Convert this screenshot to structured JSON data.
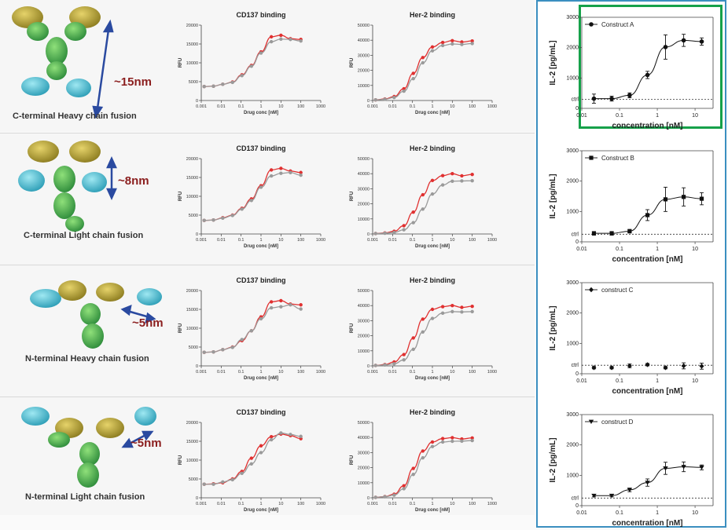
{
  "rows": [
    {
      "label": "C-terminal Heavy chain fusion",
      "dimension": "~15nm"
    },
    {
      "label": "C-terminal Light chain fusion",
      "dimension": "~8nm"
    },
    {
      "label": "N-terminal Heavy chain fusion",
      "dimension": "~5nm"
    },
    {
      "label": "N-terminal Light chain fusion",
      "dimension": "~5nm"
    }
  ],
  "caption": "",
  "colors": {
    "red_series": "#e03030",
    "grey_series": "#9a9a9a",
    "panel_border": "#3b8fc0",
    "highlight_border": "#16a14a",
    "dimension_text": "#8b1e1e",
    "arrow": "#2a4aa0"
  },
  "chart_data": [
    {
      "type": "line",
      "title": "CD137 binding",
      "xlabel": "Drug conc [nM]",
      "ylabel": "RFU",
      "xscale": "log",
      "xlim": [
        0.001,
        1000
      ],
      "ylim": [
        0,
        20000
      ],
      "xticks": [
        "0.001",
        "0.01",
        "0.1",
        "1",
        "10",
        "100",
        "1000"
      ],
      "yticks": [
        "0",
        "5000",
        "10000",
        "15000",
        "20000"
      ],
      "x": [
        0.0014,
        0.0041,
        0.012,
        0.037,
        0.11,
        0.33,
        1,
        3.3,
        10,
        30,
        100
      ],
      "series": [
        {
          "color": "#e03030",
          "values": [
            3700,
            3800,
            4300,
            4900,
            6800,
            9300,
            12900,
            16900,
            17300,
            16400,
            16200
          ]
        },
        {
          "color": "#9a9a9a",
          "values": [
            3700,
            3800,
            4300,
            4800,
            6600,
            9100,
            12600,
            15600,
            16300,
            16200,
            15800
          ]
        }
      ]
    },
    {
      "type": "line",
      "title": "Her-2 binding",
      "xlabel": "Drug conc [nM]",
      "ylabel": "RFU",
      "xscale": "log",
      "xlim": [
        0.001,
        1000
      ],
      "ylim": [
        0,
        50000
      ],
      "xticks": [
        "0.001",
        "0.01",
        "0.1",
        "1",
        "10",
        "100",
        "1000"
      ],
      "yticks": [
        "0",
        "10000",
        "20000",
        "30000",
        "40000",
        "50000"
      ],
      "x": [
        0.0014,
        0.0041,
        0.012,
        0.037,
        0.11,
        0.33,
        1,
        3.3,
        10,
        30,
        100
      ],
      "series": [
        {
          "color": "#e03030",
          "values": [
            400,
            1000,
            2600,
            7800,
            18000,
            28500,
            35500,
            38500,
            39700,
            38800,
            39500
          ]
        },
        {
          "color": "#9a9a9a",
          "values": [
            400,
            800,
            2000,
            6200,
            14500,
            25000,
            33000,
            36500,
            37500,
            37200,
            37800
          ]
        }
      ]
    },
    {
      "type": "line",
      "title": "",
      "xlabel": "concentration [nM]",
      "ylabel": "IL-2 [pg/mL]",
      "xscale": "log",
      "xlim": [
        0.01,
        30
      ],
      "ylim": [
        0,
        3000
      ],
      "xticks": [
        "0.01",
        "0.1",
        "1",
        "10"
      ],
      "yticks": [
        "0",
        "1000",
        "2000",
        "3000"
      ],
      "ctrl_label": "ctrl",
      "ctrl_value": 300,
      "legend": "Construct A",
      "marker": "circle",
      "x": [
        0.021,
        0.062,
        0.185,
        0.55,
        1.65,
        5,
        15
      ],
      "series": [
        {
          "name": "Construct A",
          "color": "#111111",
          "values": [
            320,
            320,
            430,
            1100,
            2020,
            2240,
            2200
          ],
          "errors": [
            150,
            80,
            80,
            120,
            400,
            200,
            120
          ]
        }
      ]
    },
    {
      "type": "line",
      "title": "CD137 binding",
      "xlabel": "Drug conc [nM]",
      "ylabel": "RFU",
      "xscale": "log",
      "xlim": [
        0.001,
        1000
      ],
      "ylim": [
        0,
        20000
      ],
      "xticks": [
        "0.001",
        "0.01",
        "0.1",
        "1",
        "10",
        "100",
        "1000"
      ],
      "yticks": [
        "0",
        "5000",
        "10000",
        "15000",
        "20000"
      ],
      "x": [
        0.0014,
        0.0041,
        0.012,
        0.037,
        0.11,
        0.33,
        1,
        3.3,
        10,
        30,
        100
      ],
      "series": [
        {
          "color": "#e03030",
          "values": [
            3600,
            3700,
            4300,
            5000,
            6800,
            9300,
            12800,
            17000,
            17400,
            16700,
            16300
          ]
        },
        {
          "color": "#9a9a9a",
          "values": [
            3600,
            3700,
            4200,
            4900,
            6600,
            8900,
            12400,
            15400,
            16100,
            16300,
            15600
          ]
        }
      ]
    },
    {
      "type": "line",
      "title": "Her-2 binding",
      "xlabel": "Drug conc [nM]",
      "ylabel": "RFU",
      "xscale": "log",
      "xlim": [
        0.001,
        1000
      ],
      "ylim": [
        0,
        50000
      ],
      "xticks": [
        "0.001",
        "0.01",
        "0.1",
        "1",
        "10",
        "100",
        "1000"
      ],
      "yticks": [
        "0",
        "10000",
        "20000",
        "30000",
        "40000",
        "50000"
      ],
      "x": [
        0.0014,
        0.0041,
        0.012,
        0.037,
        0.11,
        0.33,
        1,
        3.3,
        10,
        30,
        100
      ],
      "series": [
        {
          "color": "#e03030",
          "values": [
            300,
            700,
            1800,
            5500,
            14500,
            26000,
            35500,
            38700,
            40000,
            38600,
            39500
          ]
        },
        {
          "color": "#9a9a9a",
          "values": [
            300,
            500,
            1000,
            2800,
            7500,
            16500,
            26500,
            32500,
            35000,
            35200,
            35300
          ]
        }
      ]
    },
    {
      "type": "line",
      "title": "",
      "xlabel": "concentration [nM]",
      "ylabel": "IL-2 [pg/mL]",
      "xscale": "log",
      "xlim": [
        0.01,
        30
      ],
      "ylim": [
        0,
        3000
      ],
      "xticks": [
        "0.01",
        "0.1",
        "1",
        "10"
      ],
      "yticks": [
        "0",
        "1000",
        "2000",
        "3000"
      ],
      "ctrl_label": "ctrl",
      "ctrl_value": 250,
      "legend": "Construct B",
      "marker": "square",
      "x": [
        0.021,
        0.062,
        0.185,
        0.55,
        1.65,
        5,
        15
      ],
      "series": [
        {
          "name": "Construct B",
          "color": "#111111",
          "values": [
            280,
            280,
            350,
            880,
            1400,
            1480,
            1420
          ],
          "errors": [
            60,
            60,
            60,
            180,
            400,
            300,
            200
          ]
        }
      ]
    },
    {
      "type": "line",
      "title": "CD137 binding",
      "xlabel": "Drug conc [nM]",
      "ylabel": "RFU",
      "xscale": "log",
      "xlim": [
        0.001,
        1000
      ],
      "ylim": [
        0,
        20000
      ],
      "xticks": [
        "0.001",
        "0.01",
        "0.1",
        "1",
        "10",
        "100",
        "1000"
      ],
      "yticks": [
        "0",
        "5000",
        "10000",
        "15000",
        "20000"
      ],
      "x": [
        0.0014,
        0.0041,
        0.012,
        0.037,
        0.11,
        0.33,
        1,
        3.3,
        10,
        30,
        100
      ],
      "series": [
        {
          "color": "#e03030",
          "values": [
            3600,
            3700,
            4300,
            5000,
            6700,
            9300,
            13000,
            17000,
            17300,
            16400,
            16200
          ]
        },
        {
          "color": "#9a9a9a",
          "values": [
            3600,
            3700,
            4300,
            4900,
            7000,
            9300,
            12500,
            15400,
            15700,
            16200,
            15100
          ]
        }
      ]
    },
    {
      "type": "line",
      "title": "Her-2 binding",
      "xlabel": "Drug conc [nM]",
      "ylabel": "RFU",
      "xscale": "log",
      "xlim": [
        0.001,
        1000
      ],
      "ylim": [
        0,
        50000
      ],
      "xticks": [
        "0.001",
        "0.01",
        "0.1",
        "1",
        "10",
        "100",
        "1000"
      ],
      "yticks": [
        "0",
        "10000",
        "20000",
        "30000",
        "40000",
        "50000"
      ],
      "x": [
        0.0014,
        0.0041,
        0.012,
        0.037,
        0.11,
        0.33,
        1,
        3.3,
        10,
        30,
        100
      ],
      "series": [
        {
          "color": "#e03030",
          "values": [
            300,
            900,
            2600,
            7500,
            18500,
            31000,
            37500,
            39300,
            40000,
            38800,
            39500
          ]
        },
        {
          "color": "#9a9a9a",
          "values": [
            300,
            600,
            1400,
            4000,
            11000,
            22500,
            31500,
            35000,
            36000,
            35800,
            36000
          ]
        }
      ]
    },
    {
      "type": "scatter",
      "title": "",
      "xlabel": "concentration [nM]",
      "ylabel": "IL-2 [pg/mL]",
      "xscale": "log",
      "xlim": [
        0.01,
        30
      ],
      "ylim": [
        0,
        3000
      ],
      "xticks": [
        "0.01",
        "0.1",
        "1",
        "10"
      ],
      "yticks": [
        "0",
        "1000",
        "2000",
        "3000"
      ],
      "ctrl_label": "ctrl",
      "ctrl_value": 280,
      "legend": "construct C",
      "marker": "diamond",
      "x": [
        0.021,
        0.062,
        0.185,
        0.55,
        1.65,
        5,
        15
      ],
      "series": [
        {
          "name": "construct C",
          "color": "#111111",
          "values": [
            200,
            200,
            260,
            300,
            200,
            260,
            250
          ],
          "errors": [
            40,
            40,
            60,
            40,
            40,
            100,
            100
          ]
        }
      ]
    },
    {
      "type": "line",
      "title": "CD137 binding",
      "xlabel": "Drug conc [nM]",
      "ylabel": "RFU",
      "xscale": "log",
      "xlim": [
        0.001,
        1000
      ],
      "ylim": [
        0,
        20000
      ],
      "xticks": [
        "0.001",
        "0.01",
        "0.1",
        "1",
        "10",
        "100",
        "1000"
      ],
      "yticks": [
        "0",
        "5000",
        "10000",
        "15000",
        "20000"
      ],
      "x": [
        0.0014,
        0.0041,
        0.012,
        0.037,
        0.11,
        0.33,
        1,
        3.3,
        10,
        30,
        100
      ],
      "series": [
        {
          "color": "#e03030",
          "values": [
            3600,
            3700,
            4000,
            5000,
            7000,
            10500,
            13800,
            16200,
            16900,
            16500,
            15700
          ]
        },
        {
          "color": "#9a9a9a",
          "values": [
            3600,
            3600,
            4200,
            4800,
            6500,
            9000,
            12000,
            15400,
            17200,
            16800,
            16300
          ]
        }
      ]
    },
    {
      "type": "line",
      "title": "Her-2 binding",
      "xlabel": "Drug conc [nM]",
      "ylabel": "RFU",
      "xscale": "log",
      "xlim": [
        0.001,
        1000
      ],
      "ylim": [
        0,
        50000
      ],
      "xticks": [
        "0.001",
        "0.01",
        "0.1",
        "1",
        "10",
        "100",
        "1000"
      ],
      "yticks": [
        "0",
        "10000",
        "20000",
        "30000",
        "40000",
        "50000"
      ],
      "x": [
        0.0014,
        0.0041,
        0.012,
        0.037,
        0.11,
        0.33,
        1,
        3.3,
        10,
        30,
        100
      ],
      "series": [
        {
          "color": "#e03030",
          "values": [
            300,
            800,
            2400,
            8000,
            19500,
            31000,
            37000,
            39300,
            39900,
            39000,
            39700
          ]
        },
        {
          "color": "#9a9a9a",
          "values": [
            300,
            700,
            1800,
            6000,
            15500,
            26500,
            34000,
            37000,
            37500,
            37600,
            38000
          ]
        }
      ]
    },
    {
      "type": "line",
      "title": "",
      "xlabel": "concentration [nM]",
      "ylabel": "IL-2 [pg/mL]",
      "xscale": "log",
      "xlim": [
        0.01,
        30
      ],
      "ylim": [
        0,
        3000
      ],
      "xticks": [
        "0.01",
        "0.1",
        "1",
        "10"
      ],
      "yticks": [
        "0",
        "1000",
        "2000",
        "3000"
      ],
      "ctrl_label": "ctrl",
      "ctrl_value": 250,
      "legend": "construct D",
      "marker": "triangle-down",
      "x": [
        0.021,
        0.062,
        0.185,
        0.55,
        1.65,
        5,
        15
      ],
      "series": [
        {
          "name": "construct D",
          "color": "#111111",
          "values": [
            330,
            330,
            520,
            760,
            1230,
            1280,
            1260
          ],
          "errors": [
            40,
            40,
            60,
            120,
            200,
            160,
            80
          ]
        }
      ]
    }
  ]
}
